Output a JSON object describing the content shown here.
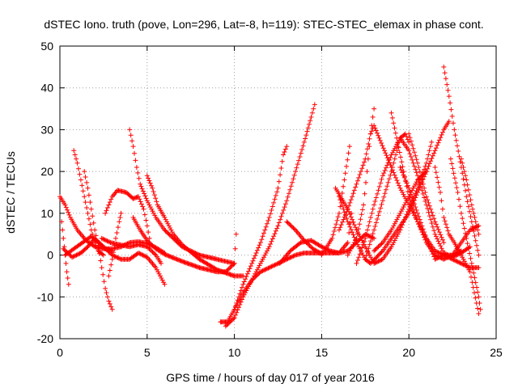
{
  "chart_data": {
    "type": "scatter",
    "title": "dSTEC Iono. truth (pove, Lon=296, Lat=-8, h=119): STEC-STEC_elemax in phase cont.",
    "xlabel": "GPS time / hours of day 017 of year 2016",
    "ylabel": "dSTEC  / TECUs",
    "xlim": [
      0,
      25
    ],
    "ylim": [
      -20,
      50
    ],
    "xticks": [
      0,
      5,
      10,
      15,
      20,
      25
    ],
    "yticks": [
      -20,
      -10,
      0,
      10,
      20,
      30,
      40,
      50
    ],
    "grid": true,
    "marker": "+",
    "color": "#ff0000",
    "series": [
      {
        "points": [
          [
            0,
            14
          ],
          [
            0.3,
            12
          ],
          [
            0.6,
            9
          ],
          [
            1.0,
            6
          ],
          [
            1.5,
            3.5
          ],
          [
            2.0,
            2
          ],
          [
            2.5,
            1.5
          ],
          [
            3.0,
            1.5
          ],
          [
            3.5,
            2
          ],
          [
            4.0,
            3
          ],
          [
            4.5,
            3.2
          ],
          [
            5.0,
            2.8
          ],
          [
            5.5,
            1.8
          ],
          [
            6.0,
            0.5
          ]
        ]
      },
      {
        "points": [
          [
            0.8,
            25
          ],
          [
            1.0,
            22
          ],
          [
            1.2,
            18
          ],
          [
            1.4,
            14
          ],
          [
            1.6,
            10
          ],
          [
            1.8,
            6
          ],
          [
            2.0,
            3
          ],
          [
            2.2,
            1
          ],
          [
            2.5,
            0
          ]
        ]
      },
      {
        "points": [
          [
            1.4,
            20
          ],
          [
            1.6,
            16
          ],
          [
            1.8,
            11
          ],
          [
            2.0,
            6
          ],
          [
            2.2,
            2
          ],
          [
            2.4,
            -3
          ],
          [
            2.6,
            -8
          ],
          [
            2.8,
            -11
          ],
          [
            3.0,
            -13
          ]
        ]
      },
      {
        "points": [
          [
            0.1,
            8
          ],
          [
            0.2,
            4
          ],
          [
            0.3,
            0
          ],
          [
            0.4,
            -4
          ],
          [
            0.5,
            -7
          ]
        ]
      },
      {
        "points": [
          [
            0.2,
            1.5
          ],
          [
            0.7,
            -0.5
          ],
          [
            1.2,
            0.5
          ],
          [
            1.6,
            2
          ],
          [
            2.0,
            4
          ],
          [
            2.5,
            2
          ],
          [
            3.0,
            0
          ],
          [
            3.5,
            -1
          ],
          [
            4.0,
            -1
          ],
          [
            4.5,
            0.5
          ],
          [
            5.0,
            -0.5
          ],
          [
            5.5,
            -3
          ],
          [
            6.0,
            -7
          ]
        ]
      },
      {
        "points": [
          [
            0.3,
            0
          ],
          [
            0.8,
            1.5
          ],
          [
            1.3,
            3
          ],
          [
            1.8,
            4.5
          ],
          [
            2.2,
            3
          ],
          [
            2.6,
            1.5
          ],
          [
            3.0,
            1
          ]
        ]
      },
      {
        "points": [
          [
            2.6,
            10
          ],
          [
            2.8,
            12
          ],
          [
            3.0,
            14
          ],
          [
            3.3,
            15.5
          ],
          [
            3.8,
            15
          ],
          [
            4.2,
            13.5
          ],
          [
            4.5,
            14
          ],
          [
            4.8,
            11
          ],
          [
            5.0,
            7
          ],
          [
            5.2,
            2.5
          ]
        ]
      },
      {
        "points": [
          [
            2.8,
            -5
          ],
          [
            3.0,
            -1
          ],
          [
            3.2,
            4
          ],
          [
            3.4,
            8
          ],
          [
            3.5,
            10
          ]
        ]
      },
      {
        "points": [
          [
            2.4,
            4
          ],
          [
            2.9,
            3
          ],
          [
            3.4,
            2.5
          ],
          [
            4.0,
            2
          ],
          [
            4.5,
            2.5
          ],
          [
            5.0,
            2
          ],
          [
            5.5,
            0
          ],
          [
            5.8,
            -2
          ]
        ]
      },
      {
        "points": [
          [
            4.0,
            30
          ],
          [
            4.2,
            26
          ],
          [
            4.4,
            21
          ],
          [
            4.6,
            17
          ],
          [
            5.0,
            13
          ],
          [
            5.5,
            9
          ],
          [
            6.0,
            6
          ],
          [
            7.0,
            2
          ],
          [
            8.0,
            0
          ],
          [
            9.0,
            -1
          ],
          [
            9.5,
            -1.5
          ],
          [
            10.0,
            -2
          ]
        ]
      },
      {
        "points": [
          [
            5.0,
            19
          ],
          [
            5.3,
            16
          ],
          [
            5.6,
            12
          ],
          [
            6.0,
            9
          ],
          [
            6.5,
            5
          ],
          [
            7.0,
            2.5
          ],
          [
            8.0,
            -1
          ],
          [
            9.0,
            -3.5
          ],
          [
            10.0,
            -5
          ],
          [
            10.5,
            -5
          ]
        ]
      },
      {
        "points": [
          [
            4.2,
            9
          ],
          [
            4.6,
            6
          ],
          [
            5.0,
            3.5
          ],
          [
            5.5,
            1.5
          ],
          [
            6.0,
            0.2
          ],
          [
            7.0,
            -1.5
          ],
          [
            8.0,
            -3
          ],
          [
            9.0,
            -4
          ],
          [
            9.5,
            -4
          ],
          [
            10.0,
            -2
          ],
          [
            10.1,
            5
          ]
        ]
      },
      {
        "points": [
          [
            9.2,
            -16
          ],
          [
            9.6,
            -16
          ],
          [
            10.0,
            -13
          ],
          [
            10.5,
            -7
          ],
          [
            11.0,
            -2
          ],
          [
            11.5,
            3
          ],
          [
            12.0,
            9
          ],
          [
            12.5,
            16
          ],
          [
            12.8,
            24
          ],
          [
            13.0,
            26
          ]
        ]
      },
      {
        "points": [
          [
            9.5,
            -17
          ],
          [
            10.0,
            -15
          ],
          [
            10.5,
            -10
          ],
          [
            11.0,
            -6
          ],
          [
            11.5,
            -2
          ],
          [
            12.0,
            2
          ],
          [
            12.5,
            7
          ],
          [
            13.0,
            13
          ],
          [
            13.5,
            20
          ],
          [
            14.0,
            27
          ],
          [
            14.4,
            33
          ],
          [
            14.6,
            36
          ]
        ]
      },
      {
        "points": [
          [
            10.0,
            -13
          ],
          [
            10.5,
            -9
          ],
          [
            11.0,
            -6
          ],
          [
            11.5,
            -4
          ],
          [
            12.0,
            -3
          ],
          [
            12.5,
            -2
          ],
          [
            13.0,
            -1
          ],
          [
            13.5,
            0
          ],
          [
            14.0,
            0.5
          ],
          [
            15.0,
            0.5
          ],
          [
            16.0,
            0.5
          ],
          [
            16.5,
            3
          ],
          [
            16.7,
            10
          ]
        ]
      },
      {
        "points": [
          [
            12.6,
            -2
          ],
          [
            13.2,
            1
          ],
          [
            13.8,
            3
          ],
          [
            14.4,
            3.5
          ],
          [
            15.0,
            2
          ],
          [
            15.5,
            1
          ],
          [
            16.0,
            0.5
          ],
          [
            16.5,
            1
          ],
          [
            17.0,
            3
          ],
          [
            17.5,
            5
          ],
          [
            18.0,
            4
          ]
        ]
      },
      {
        "points": [
          [
            13.0,
            8
          ],
          [
            13.5,
            6
          ],
          [
            14.0,
            3.5
          ],
          [
            14.5,
            1.5
          ],
          [
            15.0,
            0.3
          ]
        ]
      },
      {
        "points": [
          [
            15.0,
            0
          ],
          [
            15.6,
            4
          ],
          [
            16.0,
            10
          ],
          [
            16.3,
            18
          ],
          [
            16.6,
            26
          ]
        ]
      },
      {
        "points": [
          [
            16.0,
            14
          ],
          [
            16.5,
            8
          ],
          [
            17.0,
            3
          ],
          [
            17.5,
            -1
          ],
          [
            17.8,
            -2
          ],
          [
            18.5,
            1
          ],
          [
            19.0,
            4
          ],
          [
            19.5,
            7
          ],
          [
            20.0,
            10
          ],
          [
            20.5,
            15
          ],
          [
            21.0,
            20
          ]
        ]
      },
      {
        "points": [
          [
            15.8,
            16
          ],
          [
            16.5,
            11
          ],
          [
            17.0,
            6
          ],
          [
            17.5,
            2
          ],
          [
            18.0,
            -2
          ],
          [
            18.5,
            -1
          ],
          [
            19.0,
            2
          ],
          [
            19.5,
            6
          ],
          [
            20.0,
            11
          ],
          [
            20.5,
            16
          ],
          [
            21.0,
            22
          ],
          [
            21.3,
            27
          ]
        ]
      },
      {
        "points": [
          [
            16.0,
            6
          ],
          [
            16.5,
            11
          ],
          [
            17.0,
            17
          ],
          [
            17.5,
            23
          ],
          [
            17.8,
            29
          ],
          [
            18.0,
            31
          ],
          [
            18.3,
            28
          ],
          [
            18.6,
            25
          ],
          [
            19.0,
            21
          ],
          [
            19.5,
            16
          ],
          [
            20.0,
            12
          ],
          [
            20.5,
            8
          ],
          [
            21.0,
            4
          ],
          [
            21.5,
            1
          ],
          [
            22.0,
            0
          ],
          [
            22.5,
            0
          ],
          [
            23.0,
            3
          ],
          [
            23.5,
            6
          ],
          [
            24.0,
            7
          ]
        ]
      },
      {
        "points": [
          [
            16.5,
            0
          ],
          [
            17.0,
            4
          ],
          [
            17.4,
            12
          ],
          [
            17.6,
            20
          ],
          [
            17.8,
            29
          ],
          [
            18.0,
            35
          ]
        ]
      },
      {
        "points": [
          [
            17.0,
            -2
          ],
          [
            17.5,
            4
          ],
          [
            18.0,
            12
          ],
          [
            18.5,
            19
          ],
          [
            19.0,
            24
          ],
          [
            19.5,
            28
          ],
          [
            20.0,
            25
          ],
          [
            20.5,
            19
          ],
          [
            21.0,
            12
          ],
          [
            21.5,
            5
          ],
          [
            22.0,
            0.5
          ],
          [
            22.5,
            -0.5
          ],
          [
            23.0,
            0.5
          ],
          [
            23.5,
            2
          ]
        ]
      },
      {
        "points": [
          [
            17.5,
            -1
          ],
          [
            18.0,
            6
          ],
          [
            18.5,
            13
          ],
          [
            19.0,
            20
          ],
          [
            19.5,
            28
          ],
          [
            19.8,
            29
          ],
          [
            20.0,
            27
          ]
        ]
      },
      {
        "points": [
          [
            19.0,
            34
          ],
          [
            19.3,
            28
          ],
          [
            19.7,
            20
          ],
          [
            20.0,
            14
          ],
          [
            20.5,
            8
          ],
          [
            21.0,
            3
          ],
          [
            21.5,
            0
          ],
          [
            22.0,
            -1
          ],
          [
            22.5,
            0
          ],
          [
            23.0,
            1
          ]
        ]
      },
      {
        "points": [
          [
            18.0,
            1
          ],
          [
            18.5,
            3
          ],
          [
            19.0,
            6
          ],
          [
            19.5,
            10
          ],
          [
            20.0,
            14
          ],
          [
            20.5,
            18
          ],
          [
            21.0,
            20
          ],
          [
            21.5,
            25
          ],
          [
            22.0,
            30
          ],
          [
            22.3,
            32
          ]
        ]
      },
      {
        "points": [
          [
            19.5,
            21
          ],
          [
            20.0,
            16
          ],
          [
            20.5,
            10
          ],
          [
            21.0,
            4
          ],
          [
            21.5,
            -1
          ],
          [
            22.0,
            0
          ],
          [
            22.5,
            -1
          ],
          [
            23.0,
            -2
          ],
          [
            23.5,
            -3
          ],
          [
            24.0,
            -3
          ]
        ]
      },
      {
        "points": [
          [
            20.0,
            29
          ],
          [
            20.5,
            22
          ],
          [
            21.0,
            14
          ],
          [
            21.5,
            8
          ],
          [
            22.0,
            3
          ]
        ]
      },
      {
        "points": [
          [
            22.0,
            45
          ],
          [
            22.3,
            38
          ],
          [
            22.6,
            30
          ],
          [
            23.0,
            21
          ],
          [
            23.3,
            14
          ],
          [
            23.6,
            8
          ],
          [
            24.0,
            0
          ]
        ]
      },
      {
        "points": [
          [
            22.4,
            23
          ],
          [
            22.8,
            15
          ],
          [
            23.0,
            10
          ],
          [
            23.3,
            4
          ],
          [
            23.6,
            -2
          ],
          [
            24.0,
            -10
          ],
          [
            24.1,
            -13
          ]
        ]
      },
      {
        "points": [
          [
            21.5,
            21
          ],
          [
            21.8,
            15
          ],
          [
            22.0,
            9
          ],
          [
            22.3,
            5
          ],
          [
            22.6,
            3
          ],
          [
            23.0,
            0
          ],
          [
            23.5,
            -4
          ],
          [
            24.0,
            -14
          ]
        ]
      },
      {
        "points": [
          [
            23.0,
            23
          ],
          [
            23.3,
            18
          ],
          [
            23.6,
            12
          ],
          [
            24.0,
            5
          ]
        ]
      }
    ]
  }
}
